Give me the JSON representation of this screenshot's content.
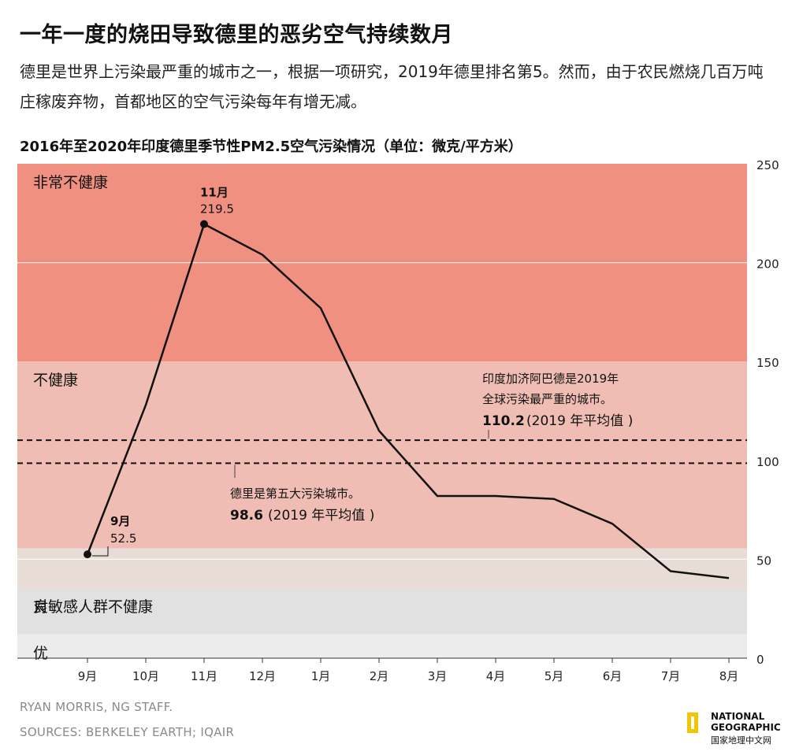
{
  "header": {
    "title": "一年一度的烧田导致德里的恶劣空气持续数月",
    "subtitle": "德里是世界上污染最严重的城市之一，根据一项研究，2019年德里排名第5。然而，由于农民燃烧几百万吨庄稼废弃物，首都地区的空气污染每年有增无减。"
  },
  "chart_data": {
    "type": "line",
    "title": "2016年至2020年印度德里季节性PM2.5空气污染情况（单位：微克/平方米）",
    "categories": [
      "9月",
      "10月",
      "11月",
      "12月",
      "1月",
      "2月",
      "3月",
      "4月",
      "5月",
      "6月",
      "7月",
      "8月"
    ],
    "values": [
      52.5,
      128,
      219.5,
      204,
      177,
      115,
      82,
      82,
      80.5,
      68,
      44,
      40.5
    ],
    "ylim": [
      0,
      250
    ],
    "yticks": [
      0,
      50,
      100,
      150,
      200,
      250
    ],
    "grid": false,
    "bands": [
      {
        "label": "非常不健康",
        "from": 150,
        "to": 250,
        "color": "#ef9080"
      },
      {
        "label": "不健康",
        "from": 55.5,
        "to": 150,
        "color": "#efbdb3"
      },
      {
        "label": "对敏感人群不健康",
        "from": 35.5,
        "to": 55.5,
        "color": "#e8dcd7"
      },
      {
        "label": "良",
        "from": 12,
        "to": 35.5,
        "color": "#e1e1e1"
      },
      {
        "label": "优",
        "from": 0,
        "to": 12,
        "color": "#ececec"
      }
    ],
    "highlights": [
      {
        "category": "9月",
        "month": "9月",
        "value": "52.5"
      },
      {
        "category": "11月",
        "month": "11月",
        "value": "219.5"
      }
    ],
    "reference_lines": [
      {
        "value": 110.2,
        "line1": "印度加济阿巴德是2019年",
        "line2": "全球污染最严重的城市。",
        "value_text": "110.2",
        "suffix": "(2019 年平均值 )"
      },
      {
        "value": 98.6,
        "line1": "德里是第五大污染城市。",
        "value_text": "98.6",
        "suffix": "(2019 年平均值 )"
      }
    ]
  },
  "footer": {
    "credit": "RYAN MORRIS, NG STAFF.",
    "sources": "SOURCES: BERKELEY EARTH; IQAIR"
  },
  "logo": {
    "line1": "NATIONAL",
    "line2": "GEOGRAPHIC",
    "line3": "国家地理中文网",
    "color": "#f5c400"
  }
}
